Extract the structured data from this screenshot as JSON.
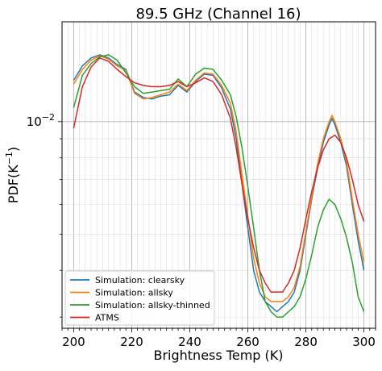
{
  "chart_data": {
    "type": "line",
    "title": "89.5 GHz (Channel 16)",
    "xlabel": "Brightness Temp (K)",
    "ylabel": "PDF(K",
    "ylabel_superscript": "−1",
    "ylabel_close": ")",
    "xlim": [
      196,
      304
    ],
    "ylim": [
      0.0028,
      0.0185
    ],
    "yscale": "log",
    "grid": "on (major and minor)",
    "legend_position": "lower-left",
    "x_ticks": [
      200,
      220,
      240,
      260,
      280,
      300
    ],
    "x_tick_labels": [
      "200",
      "220",
      "240",
      "260",
      "280",
      "300"
    ],
    "y_ticks": [
      0.01
    ],
    "y_tick_labels": [
      {
        "base": "10",
        "exp": "−2"
      }
    ],
    "series": [
      {
        "name": "Simulation: clearsky",
        "color": "#1f77b4",
        "x": [
          200,
          203,
          206,
          209,
          212,
          215,
          218,
          221,
          224,
          227,
          230,
          233,
          236,
          239,
          242,
          245,
          248,
          251,
          254,
          256,
          258,
          260,
          262,
          264,
          266,
          268,
          270,
          272,
          274,
          276,
          278,
          280,
          282,
          284,
          286,
          288,
          289,
          290,
          292,
          294,
          296,
          298,
          300
        ],
        "y": [
          0.0129,
          0.0141,
          0.0148,
          0.0151,
          0.0148,
          0.0142,
          0.0138,
          0.012,
          0.0116,
          0.0115,
          0.0117,
          0.0118,
          0.0125,
          0.012,
          0.0128,
          0.0134,
          0.0133,
          0.0123,
          0.0108,
          0.009,
          0.0068,
          0.0052,
          0.004,
          0.0035,
          0.0033,
          0.0032,
          0.0031,
          0.0032,
          0.0033,
          0.0035,
          0.004,
          0.005,
          0.0062,
          0.0075,
          0.0088,
          0.0098,
          0.0102,
          0.0098,
          0.0088,
          0.0076,
          0.006,
          0.0048,
          0.004
        ]
      },
      {
        "name": "Simulation: allsky",
        "color": "#ff7f0e",
        "x": [
          200,
          203,
          206,
          209,
          212,
          215,
          218,
          221,
          224,
          227,
          230,
          233,
          236,
          239,
          242,
          245,
          248,
          251,
          254,
          256,
          258,
          260,
          262,
          264,
          266,
          268,
          270,
          272,
          274,
          276,
          278,
          280,
          282,
          284,
          286,
          288,
          289,
          290,
          292,
          294,
          296,
          298,
          300
        ],
        "y": [
          0.0126,
          0.0138,
          0.0146,
          0.015,
          0.0147,
          0.0141,
          0.0137,
          0.0119,
          0.0115,
          0.0116,
          0.0118,
          0.012,
          0.0126,
          0.0121,
          0.0129,
          0.0135,
          0.0134,
          0.0125,
          0.0112,
          0.0094,
          0.0072,
          0.0056,
          0.0043,
          0.0037,
          0.0034,
          0.0033,
          0.0033,
          0.0033,
          0.0034,
          0.0036,
          0.0041,
          0.0051,
          0.0063,
          0.0077,
          0.009,
          0.01,
          0.0104,
          0.01,
          0.009,
          0.0078,
          0.0062,
          0.005,
          0.0042
        ]
      },
      {
        "name": "Simulation: allsky-thinned",
        "color": "#2ca02c",
        "x": [
          200,
          203,
          206,
          209,
          212,
          215,
          218,
          221,
          224,
          227,
          230,
          233,
          236,
          239,
          242,
          245,
          248,
          251,
          254,
          256,
          258,
          260,
          262,
          264,
          266,
          268,
          270,
          272,
          274,
          276,
          278,
          280,
          282,
          284,
          286,
          288,
          290,
          292,
          294,
          296,
          298,
          300
        ],
        "y": [
          0.0109,
          0.0133,
          0.0143,
          0.0149,
          0.0151,
          0.0146,
          0.0135,
          0.0124,
          0.0119,
          0.012,
          0.0121,
          0.0122,
          0.013,
          0.0124,
          0.0134,
          0.0139,
          0.0138,
          0.0129,
          0.0118,
          0.0103,
          0.0085,
          0.0067,
          0.0052,
          0.004,
          0.0033,
          0.0031,
          0.003,
          0.003,
          0.0031,
          0.0032,
          0.0034,
          0.0038,
          0.0044,
          0.0052,
          0.0058,
          0.0062,
          0.006,
          0.0055,
          0.0049,
          0.0042,
          0.0034,
          0.0031
        ]
      },
      {
        "name": "ATMS",
        "color": "#d62728",
        "x": [
          200,
          203,
          206,
          209,
          212,
          215,
          218,
          221,
          224,
          227,
          230,
          233,
          236,
          239,
          242,
          245,
          248,
          251,
          254,
          256,
          258,
          260,
          262,
          264,
          266,
          268,
          270,
          272,
          274,
          276,
          278,
          280,
          282,
          284,
          286,
          288,
          290,
          292,
          294,
          296,
          298,
          300
        ],
        "y": [
          0.0096,
          0.0124,
          0.014,
          0.0148,
          0.0145,
          0.0138,
          0.0132,
          0.0127,
          0.0125,
          0.0124,
          0.0124,
          0.0125,
          0.0128,
          0.0124,
          0.0127,
          0.0131,
          0.0128,
          0.0118,
          0.0102,
          0.0085,
          0.0068,
          0.0055,
          0.0046,
          0.004,
          0.0037,
          0.0035,
          0.0035,
          0.0035,
          0.0037,
          0.004,
          0.0046,
          0.0055,
          0.0065,
          0.0075,
          0.0084,
          0.009,
          0.0092,
          0.0088,
          0.008,
          0.007,
          0.006,
          0.0054
        ]
      }
    ]
  }
}
